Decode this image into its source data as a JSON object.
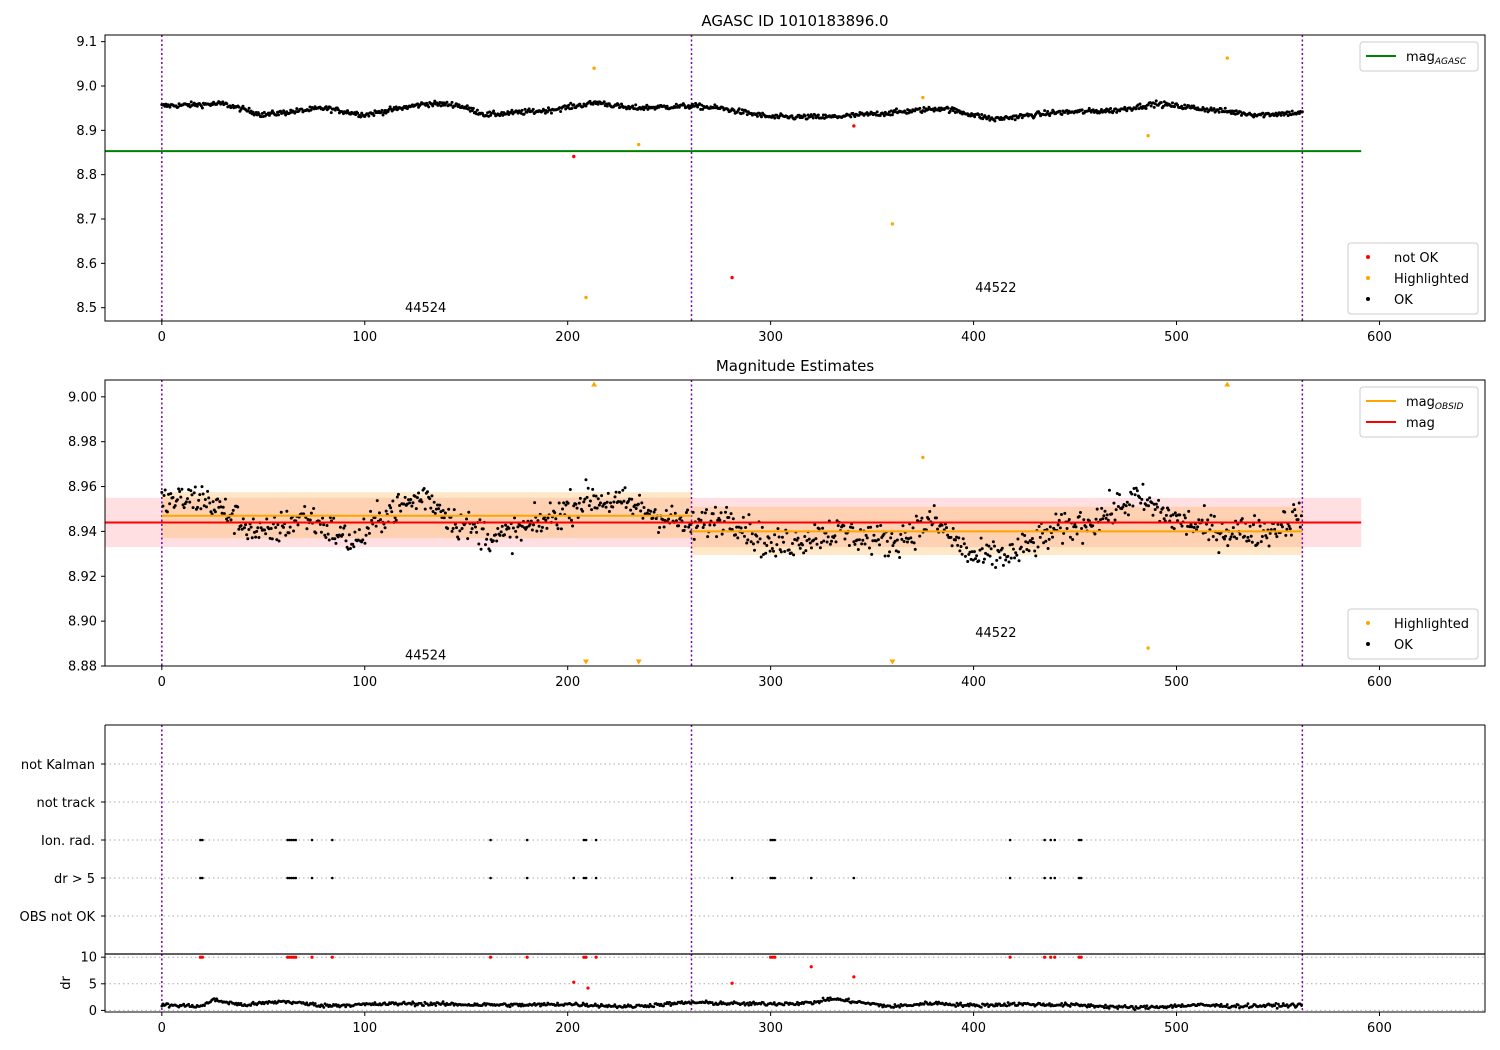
{
  "chart_data": [
    {
      "id": "p1",
      "type": "scatter",
      "title": "AGASC ID 1010183896.0",
      "xlim": [
        -28,
        652
      ],
      "ylim": [
        8.47,
        9.115
      ],
      "xticks": [
        0,
        100,
        200,
        300,
        400,
        500,
        600
      ],
      "yticks": [
        8.5,
        8.6,
        8.7,
        8.8,
        8.9,
        9.0,
        9.1
      ],
      "ytick_labels": [
        "8.5",
        "8.6",
        "8.7",
        "8.8",
        "8.9",
        "9.0",
        "9.1"
      ],
      "obs_boundaries": [
        0,
        261,
        562
      ],
      "obs_labels": [
        {
          "text": "44524",
          "x": 130,
          "y": 8.49
        },
        {
          "text": "44522",
          "x": 411,
          "y": 8.535
        }
      ],
      "hlines": [
        {
          "name": "mag_AGASC",
          "y": 8.853,
          "x0": -28,
          "x1": 591,
          "color": "#008000"
        }
      ],
      "legend_top": {
        "position": "top-right",
        "entries": [
          {
            "label": "mag",
            "sub": "AGASC",
            "color": "#008000",
            "kind": "line"
          }
        ]
      },
      "legend_bottom": {
        "position": "bottom-right",
        "entries": [
          {
            "label": "not OK",
            "color": "#ff0000",
            "kind": "dot"
          },
          {
            "label": "Highlighted",
            "color": "#ffa500",
            "kind": "dot"
          },
          {
            "label": "OK",
            "color": "#000000",
            "kind": "dot"
          }
        ]
      },
      "ok_series": {
        "color": "#000000",
        "segments": [
          {
            "x": [
              0,
              30,
              50,
              80,
              100,
              130,
              145,
              160,
              190,
              215,
              230,
              261,
              275,
              300,
              330,
              360,
              385,
              410,
              440,
              470,
              490,
              520,
              540,
              562
            ],
            "y": [
              8.955,
              8.96,
              8.935,
              8.95,
              8.935,
              8.96,
              8.958,
              8.935,
              8.945,
              8.963,
              8.95,
              8.955,
              8.95,
              8.93,
              8.93,
              8.94,
              8.95,
              8.925,
              8.94,
              8.945,
              8.96,
              8.945,
              8.935,
              8.94
            ]
          }
        ],
        "noise": 0.006,
        "step": 0.5
      },
      "highlighted": {
        "color": "#ffa500",
        "x": [
          209,
          213,
          235,
          360,
          375,
          486,
          525
        ],
        "y": [
          8.523,
          9.04,
          8.868,
          8.689,
          8.974,
          8.888,
          9.063
        ]
      },
      "not_ok": {
        "color": "#ff0000",
        "x": [
          203,
          281,
          341
        ],
        "y": [
          8.841,
          8.568,
          8.91
        ]
      }
    },
    {
      "id": "p2",
      "type": "scatter",
      "title": "Magnitude Estimates",
      "xlim": [
        -28,
        652
      ],
      "ylim": [
        8.88,
        9.0075
      ],
      "xticks": [
        0,
        100,
        200,
        300,
        400,
        500,
        600
      ],
      "yticks": [
        8.88,
        8.9,
        8.92,
        8.94,
        8.96,
        8.98,
        9.0
      ],
      "ytick_labels": [
        "8.88",
        "8.90",
        "8.92",
        "8.94",
        "8.96",
        "8.98",
        "9.00"
      ],
      "obs_boundaries": [
        0,
        261,
        562
      ],
      "obs_labels": [
        {
          "text": "44524",
          "x": 130,
          "y": 8.883
        },
        {
          "text": "44522",
          "x": 411,
          "y": 8.893
        }
      ],
      "bands": [
        {
          "x0": -28,
          "x1": 591,
          "y0": 8.933,
          "y1": 8.955,
          "color": "#ffc0c5",
          "opacity": 0.5
        },
        {
          "x0": 0,
          "x1": 261,
          "y0": 8.937,
          "y1": 8.9575,
          "color": "#ffb347",
          "opacity": 0.3
        },
        {
          "x0": 261,
          "x1": 562,
          "y0": 8.9295,
          "y1": 8.951,
          "color": "#ffb347",
          "opacity": 0.3
        }
      ],
      "hlines": [
        {
          "name": "mag",
          "y": 8.944,
          "x0": -28,
          "x1": 591,
          "color": "#ff0000"
        },
        {
          "name": "mag_OBSID_44524",
          "y": 8.947,
          "x0": 0,
          "x1": 261,
          "color": "#ffa500"
        },
        {
          "name": "mag_OBSID_44522",
          "y": 8.94,
          "x0": 261,
          "x1": 562,
          "color": "#ffa500"
        }
      ],
      "legend_top": {
        "position": "top-right",
        "entries": [
          {
            "label": "mag",
            "sub": "OBSID",
            "color": "#ffa500",
            "kind": "line"
          },
          {
            "label": "mag",
            "sub": "",
            "color": "#ff0000",
            "kind": "line"
          }
        ]
      },
      "legend_bottom": {
        "position": "bottom-right",
        "entries": [
          {
            "label": "Highlighted",
            "color": "#ffa500",
            "kind": "dot"
          },
          {
            "label": "OK",
            "color": "#000000",
            "kind": "dot"
          }
        ]
      },
      "ok_series": {
        "color": "#000000",
        "segments": [
          {
            "x": [
              0,
              20,
              50,
              70,
              95,
              110,
              130,
              145,
              165,
              185,
              210,
              230,
              261,
              280,
              300,
              330,
              360,
              380,
              400,
              420,
              440,
              460,
              480,
              500,
              520,
              545,
              562
            ],
            "y": [
              8.953,
              8.955,
              8.938,
              8.947,
              8.935,
              8.948,
              8.956,
              8.944,
              8.937,
              8.943,
              8.955,
              8.952,
              8.942,
              8.947,
              8.933,
              8.94,
              8.935,
              8.945,
              8.928,
              8.93,
              8.94,
              8.945,
              8.955,
              8.945,
              8.94,
              8.94,
              8.948
            ]
          }
        ],
        "noise": 0.007,
        "step": 0.55
      },
      "highlighted": {
        "color": "#ffa500",
        "x": [
          375,
          486
        ],
        "y": [
          8.973,
          8.888
        ]
      },
      "clipped_up": {
        "color": "#ffa500",
        "x": [
          213,
          525
        ]
      },
      "clipped_down": {
        "color": "#ffa500",
        "x": [
          209,
          235,
          360
        ]
      }
    },
    {
      "id": "p3",
      "type": "scatter",
      "xlim": [
        -28,
        652
      ],
      "categories": [
        "not Kalman",
        "not track",
        "Ion. rad.",
        "dr > 5",
        "OBS not OK"
      ],
      "obs_boundaries": [
        0,
        261,
        562
      ],
      "flags": {
        "Ion. rad.": [
          19,
          20,
          62,
          63,
          64,
          65,
          66,
          74,
          84,
          162,
          180,
          208,
          209,
          214,
          300,
          301,
          302,
          418,
          435,
          438,
          440,
          452,
          453
        ],
        "dr > 5": [
          19,
          20,
          62,
          63,
          64,
          65,
          66,
          74,
          84,
          162,
          180,
          203,
          208,
          209,
          214,
          281,
          300,
          301,
          302,
          320,
          341,
          418,
          435,
          438,
          440,
          452,
          453
        ]
      }
    },
    {
      "id": "p4",
      "type": "scatter",
      "ylabel": "dr",
      "xlim": [
        -28,
        652
      ],
      "ylim": [
        -0.3,
        10.6
      ],
      "xticks": [
        0,
        100,
        200,
        300,
        400,
        500,
        600
      ],
      "yticks": [
        0,
        5,
        10
      ],
      "ytick_labels": [
        "0",
        "5",
        "10"
      ],
      "obs_boundaries": [
        0,
        261,
        562
      ],
      "dr_base": {
        "color": "#000000",
        "x": [
          0,
          20,
          25,
          40,
          60,
          80,
          120,
          150,
          180,
          200,
          230,
          261,
          290,
          320,
          330,
          360,
          380,
          400,
          420,
          450,
          480,
          510,
          530,
          562
        ],
        "y": [
          1.0,
          0.8,
          2.0,
          1.0,
          1.7,
          0.9,
          1.3,
          1.1,
          1.0,
          1.2,
          0.7,
          1.5,
          1.2,
          1.4,
          2.2,
          0.7,
          1.4,
          0.9,
          1.2,
          1.0,
          0.5,
          1.0,
          0.8,
          1.0
        ],
        "noise": 0.35,
        "step": 0.6
      },
      "dr_red": {
        "color": "#ff0000",
        "x": [
          19,
          20,
          62,
          63,
          64,
          65,
          66,
          74,
          84,
          162,
          180,
          203,
          208,
          209,
          210,
          214,
          281,
          300,
          301,
          302,
          320,
          341,
          418,
          435,
          438,
          440,
          452,
          453
        ],
        "y": [
          10,
          10,
          10,
          10,
          10,
          10,
          10,
          10,
          10,
          10,
          10,
          5.3,
          10,
          10,
          4.2,
          10,
          5.1,
          10,
          10,
          10,
          8.2,
          6.3,
          10,
          10,
          10,
          10,
          10,
          10
        ]
      }
    }
  ]
}
